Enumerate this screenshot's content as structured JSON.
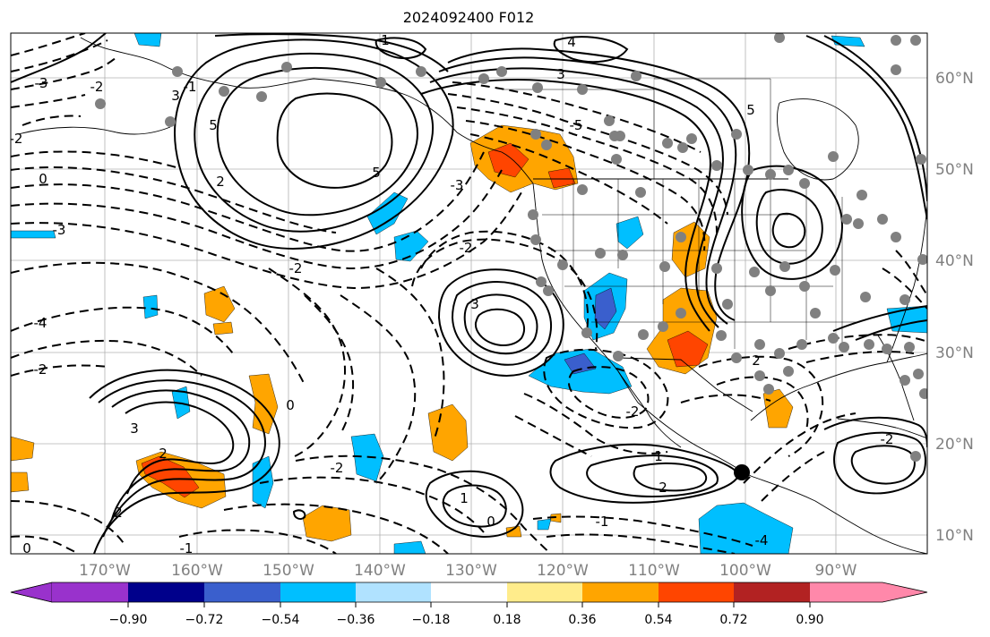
{
  "title": "2024092400 F012",
  "map": {
    "lat_labels": [
      "60°N",
      "50°N",
      "40°N",
      "30°N",
      "20°N",
      "10°N"
    ],
    "lon_labels": [
      "170°W",
      "160°W",
      "150°W",
      "140°W",
      "130°W",
      "120°W",
      "110°W",
      "100°W",
      "90°W"
    ],
    "contour_labels": [
      "-3",
      "-2",
      "-2",
      "-3",
      "0",
      "-2",
      "-2",
      "-4",
      "3",
      "5",
      "5",
      "-5",
      "5",
      "3",
      "4",
      "1",
      "2",
      "3",
      "-3",
      "-2",
      "0",
      "0",
      "-2",
      "-1",
      "2",
      "3",
      "2",
      "1",
      "-1",
      "1",
      "2",
      "-2",
      "2",
      "-4",
      "-1",
      "0",
      "-2"
    ]
  },
  "colorbar": {
    "colors": [
      "#9932cc",
      "#00008b",
      "#3a5fcd",
      "#00bfff",
      "#b0e2ff",
      "#ffffff",
      "#ffec8b",
      "#ffa500",
      "#ff4500",
      "#b22222",
      "#ff88aa"
    ],
    "ticks": [
      "−0.90",
      "−0.72",
      "−0.54",
      "−0.36",
      "−0.18",
      "0.18",
      "0.36",
      "0.54",
      "0.72",
      "0.90"
    ]
  }
}
